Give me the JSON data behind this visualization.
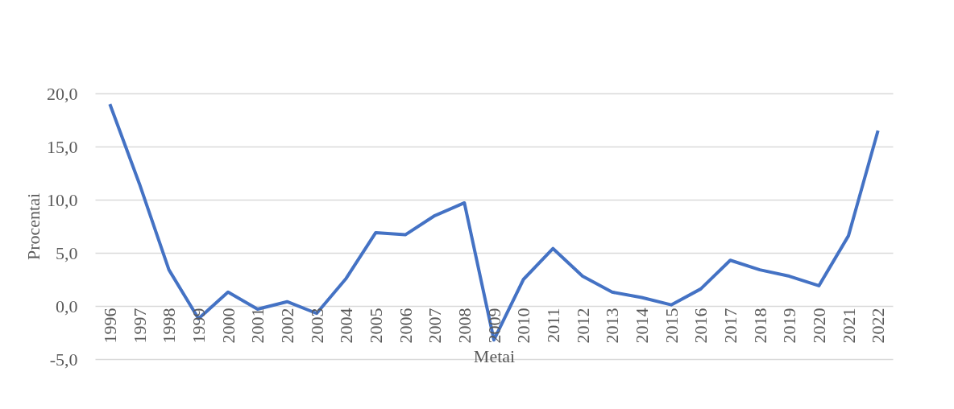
{
  "chart_data": {
    "type": "line",
    "xlabel": "Metai",
    "ylabel": "Procentai",
    "categories": [
      "1996",
      "1997",
      "1998",
      "1999",
      "2000",
      "2001",
      "2002",
      "2003",
      "2004",
      "2005",
      "2006",
      "2007",
      "2008",
      "2009",
      "2010",
      "2011",
      "2012",
      "2013",
      "2014",
      "2015",
      "2016",
      "2017",
      "2018",
      "2019",
      "2020",
      "2021",
      "2022"
    ],
    "series": [
      {
        "color": "#4472c4",
        "values": [
          19.0,
          11.5,
          3.4,
          -1.2,
          1.3,
          -0.3,
          0.4,
          -0.7,
          2.6,
          6.9,
          6.7,
          8.5,
          9.7,
          -3.2,
          2.5,
          5.4,
          2.8,
          1.3,
          0.8,
          0.1,
          1.6,
          4.3,
          3.4,
          2.8,
          1.9,
          6.6,
          16.5
        ]
      }
    ],
    "ylim": [
      -5,
      20
    ],
    "yticks": [
      {
        "value": -5,
        "label": "-5,0"
      },
      {
        "value": 0,
        "label": "0,0"
      },
      {
        "value": 5,
        "label": "5,0"
      },
      {
        "value": 10,
        "label": "10,0"
      },
      {
        "value": 15,
        "label": "15,0"
      },
      {
        "value": 20,
        "label": "20,0"
      }
    ],
    "grid": "y",
    "legend": false,
    "marker": "none",
    "line_style": "solid"
  }
}
